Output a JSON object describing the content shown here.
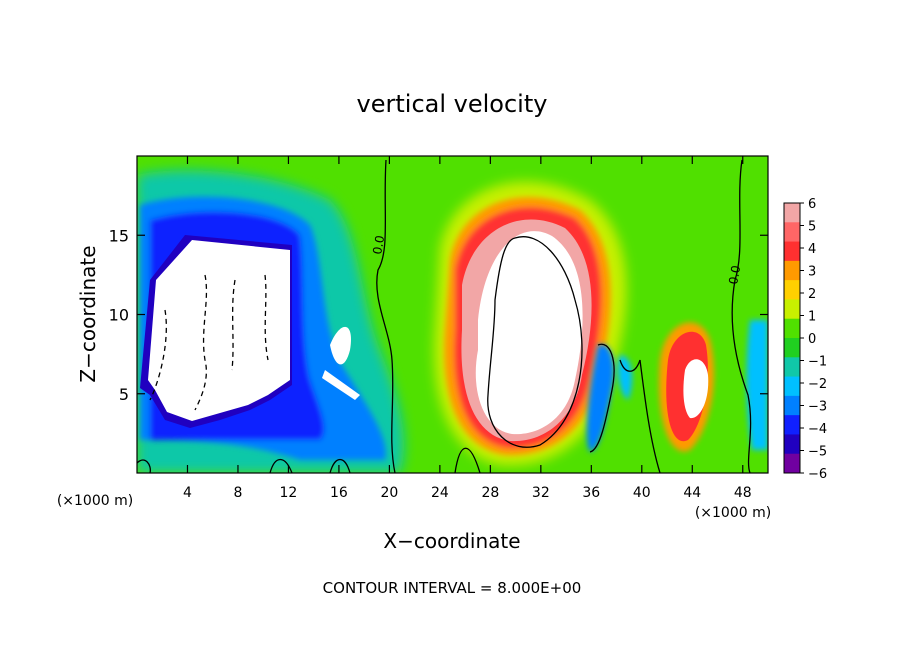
{
  "chart_data": {
    "type": "heatmap",
    "title": "vertical velocity",
    "xlabel": "X−coordinate",
    "ylabel": "Z−coordinate",
    "x_unit_label": "(×1000 m)",
    "y_unit_label": "(×1000 m)",
    "footer": "CONTOUR INTERVAL = 8.000E+00",
    "xlim": [
      0,
      50
    ],
    "ylim": [
      0,
      20
    ],
    "x_ticks": [
      4,
      8,
      12,
      16,
      20,
      24,
      28,
      32,
      36,
      40,
      44,
      48
    ],
    "y_ticks": [
      5,
      10,
      15
    ],
    "contour_labels": [
      "0.0",
      "0.0"
    ],
    "colorbar": {
      "range": [
        -6,
        6
      ],
      "ticks": [
        "6",
        "5",
        "4",
        "3",
        "2",
        "1",
        "0",
        "−1",
        "−2",
        "−3",
        "−4",
        "−5",
        "−6"
      ],
      "colors": [
        "#f2a6a6",
        "#ff6666",
        "#ff3030",
        "#ff9a00",
        "#ffd000",
        "#c8f000",
        "#50e000",
        "#20d020",
        "#10c8a8",
        "#00c0ff",
        "#0080ff",
        "#1020ff",
        "#2000c0",
        "#7000a0"
      ]
    },
    "features": [
      {
        "type": "downdraft",
        "x_range": [
          1,
          13
        ],
        "z_range": [
          2.5,
          15
        ],
        "value": "< -6"
      },
      {
        "type": "updraft",
        "x_range": [
          24,
          38
        ],
        "z_range": [
          1,
          18.5
        ],
        "value": "> 6"
      },
      {
        "type": "updraft",
        "x_range": [
          42,
          47
        ],
        "z_range": [
          2.5,
          9.5
        ],
        "value": "> 6"
      }
    ]
  }
}
